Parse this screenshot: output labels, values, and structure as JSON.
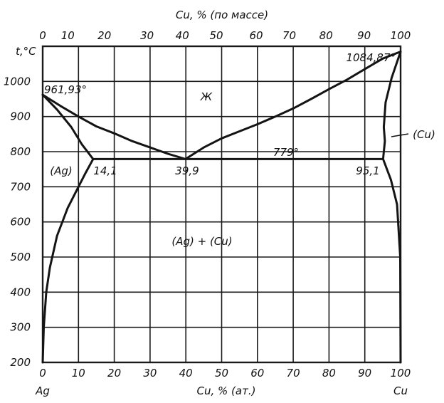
{
  "colors": {
    "ink": "#141414",
    "background": "#ffffff"
  },
  "top_axis": {
    "title": "Cu, % (по массе)",
    "ticks": [
      "0",
      "10",
      "20",
      "30",
      "40",
      "50",
      "60",
      "70",
      "80",
      "90",
      "100"
    ],
    "tick_values": [
      0,
      7.02,
      17.24,
      29.15,
      39.01,
      48.51,
      59.65,
      68.89,
      79.17,
      89.8,
      100
    ]
  },
  "bottom_axis": {
    "title": "Cu, % (ат.)",
    "ticks": [
      "0",
      "10",
      "20",
      "30",
      "40",
      "50",
      "60",
      "70",
      "80",
      "90",
      "100"
    ],
    "left_component": "Ag",
    "right_component": "Cu"
  },
  "y_axis": {
    "title": "t,°C",
    "ticks": [
      "200",
      "300",
      "400",
      "500",
      "600",
      "700",
      "800",
      "900",
      "1000"
    ]
  },
  "labels": {
    "liquid": "Ж",
    "ag_melting": "961,93°",
    "cu_melting": "1084,87°",
    "eutectic_temp": "779°",
    "left_eutectic_point": "14,1",
    "eutectic_point": "39,9",
    "right_eutectic_point": "95,1",
    "ag_phase": "(Ag)",
    "cu_phase": "(Cu)",
    "two_phase": "(Ag) + (Cu)"
  },
  "chart_data": {
    "type": "line",
    "x_unit": "Cu, % (ат.)",
    "y_unit": "t,°C",
    "xlim": [
      0,
      100
    ],
    "ylim": [
      200,
      1100
    ],
    "grid": true,
    "series": [
      {
        "x": [
          0,
          5,
          10,
          15,
          20,
          25,
          30,
          35,
          39.9
        ],
        "y": [
          961.93,
          930,
          900,
          872,
          852,
          830,
          812,
          794,
          779
        ]
      },
      {
        "x": [
          39.9,
          45,
          50,
          55,
          60,
          65,
          70,
          75,
          80,
          85,
          90,
          95,
          100
        ],
        "y": [
          779,
          812,
          838,
          858,
          878,
          900,
          923,
          950,
          978,
          1005,
          1035,
          1065,
          1084.87
        ]
      },
      {
        "x": [
          0,
          4,
          8,
          11,
          14.1
        ],
        "y": [
          961.93,
          920,
          870,
          820,
          779
        ]
      },
      {
        "x": [
          0,
          0.3,
          1,
          2,
          4,
          7,
          10,
          12,
          14.1
        ],
        "y": [
          200,
          300,
          400,
          470,
          560,
          640,
          700,
          740,
          779
        ]
      },
      {
        "x": [
          14.1,
          95.1
        ],
        "y": [
          779,
          779
        ]
      },
      {
        "x": [
          95.1,
          95.6,
          95.3,
          95.8,
          97.5,
          100
        ],
        "y": [
          779,
          830,
          870,
          940,
          1010,
          1084.87
        ]
      },
      {
        "x": [
          95.1,
          97.3,
          99,
          99.9,
          100
        ],
        "y": [
          779,
          720,
          650,
          500,
          200
        ]
      }
    ]
  }
}
